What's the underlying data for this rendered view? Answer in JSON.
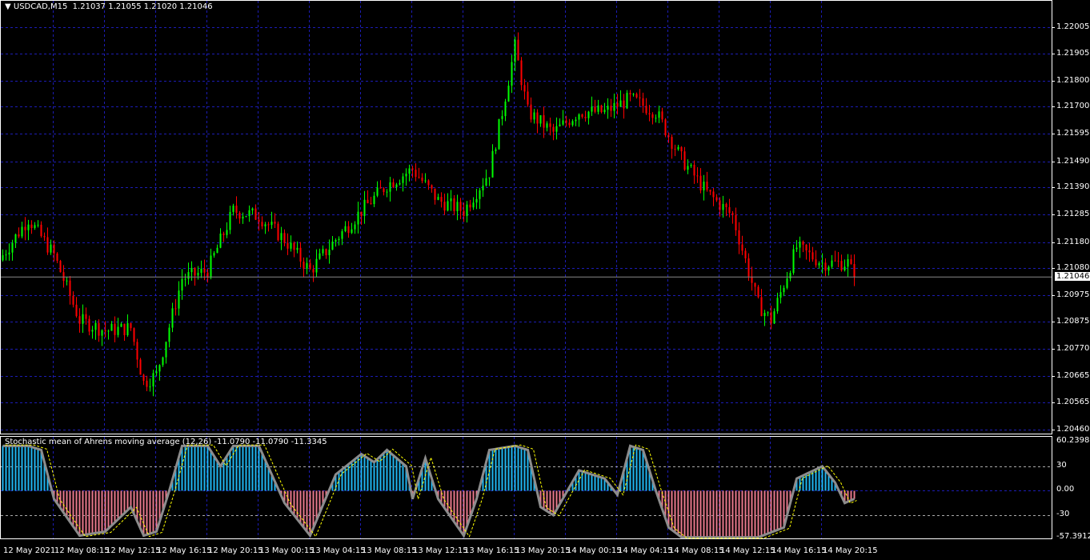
{
  "header": {
    "symbol": "USDCAD,M15",
    "ohlc": "1.21037 1.21055 1.21020 1.21046",
    "menu_icon": "triangle-down-icon"
  },
  "indicator": {
    "title": "Stochastic mean of Ahrens moving average (12,26) -11.0790 -11.0790 -11.3345"
  },
  "colors": {
    "bull": "#00ff00",
    "bear": "#ff0000",
    "grid": "#1c1cb4",
    "hist_pos": "#1fb6f0",
    "hist_neg": "#e8798c",
    "osc_line": "#8c8c8c",
    "signal_line": "#ffff00"
  },
  "chart_data": [
    {
      "type": "candlestick",
      "timeframe": "M15",
      "ylim": [
        1.2046,
        1.2205
      ],
      "y_ticks": [
        "1.22005",
        "1.21905",
        "1.21800",
        "1.21700",
        "1.21595",
        "1.21490",
        "1.21390",
        "1.21285",
        "1.21180",
        "1.21080",
        "1.20975",
        "1.20875",
        "1.20770",
        "1.20665",
        "1.20565",
        "1.20460"
      ],
      "current_price": "1.21046",
      "x_ticks": [
        "12 May 2021",
        "12 May 08:15",
        "12 May 12:15",
        "12 May 16:15",
        "12 May 20:15",
        "13 May 00:15",
        "13 May 04:15",
        "13 May 08:15",
        "13 May 12:15",
        "13 May 16:15",
        "13 May 20:15",
        "14 May 00:15",
        "14 May 04:15",
        "14 May 08:15",
        "14 May 12:15",
        "14 May 16:15",
        "14 May 20:15"
      ],
      "approx_close_by_bar": [
        [
          0,
          1.2113
        ],
        [
          8,
          1.2127
        ],
        [
          16,
          1.2113
        ],
        [
          24,
          1.2088
        ],
        [
          32,
          1.2084
        ],
        [
          40,
          1.2085
        ],
        [
          44,
          1.2064
        ],
        [
          48,
          1.2067
        ],
        [
          56,
          1.2104
        ],
        [
          64,
          1.2107
        ],
        [
          72,
          1.213
        ],
        [
          80,
          1.2128
        ],
        [
          88,
          1.2119
        ],
        [
          96,
          1.2107
        ],
        [
          104,
          1.2119
        ],
        [
          112,
          1.213
        ],
        [
          120,
          1.214
        ],
        [
          128,
          1.2146
        ],
        [
          136,
          1.2134
        ],
        [
          144,
          1.213
        ],
        [
          152,
          1.2145
        ],
        [
          156,
          1.2168
        ],
        [
          160,
          1.2193
        ],
        [
          164,
          1.2168
        ],
        [
          172,
          1.216
        ],
        [
          180,
          1.2168
        ],
        [
          188,
          1.2168
        ],
        [
          196,
          1.2173
        ],
        [
          204,
          1.2168
        ],
        [
          212,
          1.215
        ],
        [
          220,
          1.2137
        ],
        [
          228,
          1.2128
        ],
        [
          236,
          1.2094
        ],
        [
          240,
          1.2088
        ],
        [
          248,
          1.2116
        ],
        [
          256,
          1.211
        ],
        [
          264,
          1.211
        ],
        [
          266,
          1.21046
        ]
      ]
    },
    {
      "type": "histogram+line",
      "ylim": [
        -57.3912,
        60.2398
      ],
      "y_ticks": [
        "60.2398",
        "30",
        "0.00",
        "-30",
        "-57.3912"
      ],
      "levels": [
        30,
        0,
        -30
      ],
      "approx_value_by_bar": [
        [
          0,
          55
        ],
        [
          8,
          55
        ],
        [
          12,
          50
        ],
        [
          16,
          -10
        ],
        [
          24,
          -55
        ],
        [
          32,
          -50
        ],
        [
          40,
          -20
        ],
        [
          44,
          -55
        ],
        [
          48,
          -50
        ],
        [
          52,
          0
        ],
        [
          56,
          55
        ],
        [
          64,
          55
        ],
        [
          68,
          30
        ],
        [
          72,
          55
        ],
        [
          80,
          55
        ],
        [
          84,
          20
        ],
        [
          88,
          -15
        ],
        [
          96,
          -55
        ],
        [
          104,
          20
        ],
        [
          112,
          45
        ],
        [
          116,
          35
        ],
        [
          120,
          50
        ],
        [
          126,
          30
        ],
        [
          128,
          -10
        ],
        [
          132,
          40
        ],
        [
          136,
          -10
        ],
        [
          144,
          -55
        ],
        [
          148,
          -10
        ],
        [
          152,
          50
        ],
        [
          160,
          55
        ],
        [
          164,
          50
        ],
        [
          168,
          -20
        ],
        [
          172,
          -30
        ],
        [
          180,
          25
        ],
        [
          188,
          15
        ],
        [
          192,
          -5
        ],
        [
          196,
          55
        ],
        [
          200,
          50
        ],
        [
          204,
          0
        ],
        [
          208,
          -45
        ],
        [
          212,
          -57
        ],
        [
          220,
          -57
        ],
        [
          228,
          -57
        ],
        [
          236,
          -57
        ],
        [
          244,
          -45
        ],
        [
          248,
          15
        ],
        [
          256,
          30
        ],
        [
          260,
          10
        ],
        [
          263,
          -15
        ],
        [
          266,
          -10
        ]
      ]
    }
  ]
}
